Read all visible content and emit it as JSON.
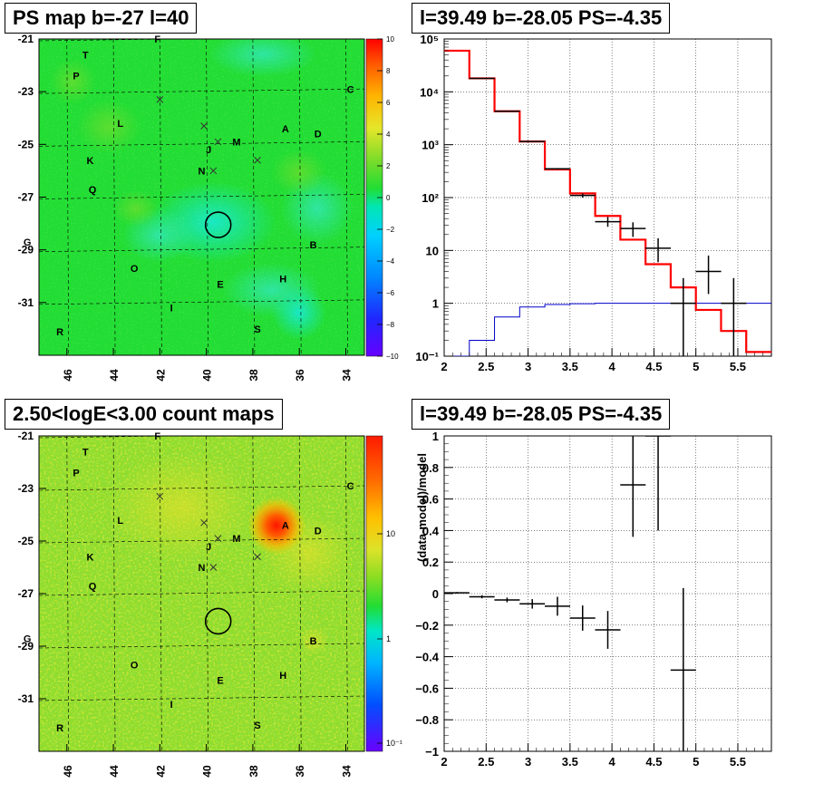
{
  "panels": {
    "map_top_title": "PS map b=-27 l=40",
    "spec_top_title": "l=39.49 b=-28.05 PS=-4.35",
    "map_bottom_title": "2.50<logE<3.00 count maps",
    "spec_bottom_title": "l=39.49 b=-28.05 PS=-4.35"
  },
  "sky_maps": {
    "lon_ticks": [
      "46",
      "44",
      "42",
      "40",
      "38",
      "36",
      "34"
    ],
    "lat_ticks": [
      "-21",
      "-23",
      "-25",
      "-27",
      "-29",
      "-31"
    ],
    "source_labels": [
      {
        "label": "F",
        "l": 42.1,
        "b": -21.0
      },
      {
        "label": "T",
        "l": 45.2,
        "b": -21.6
      },
      {
        "label": "P",
        "l": 45.6,
        "b": -22.4
      },
      {
        "label": "C",
        "l": 33.8,
        "b": -22.9
      },
      {
        "label": "L",
        "l": 43.7,
        "b": -24.2
      },
      {
        "label": "A",
        "l": 36.6,
        "b": -24.4
      },
      {
        "label": "D",
        "l": 35.2,
        "b": -24.6
      },
      {
        "label": "M",
        "l": 38.7,
        "b": -24.9
      },
      {
        "label": "J",
        "l": 39.9,
        "b": -25.2
      },
      {
        "label": "K",
        "l": 45.0,
        "b": -25.6
      },
      {
        "label": "N",
        "l": 40.2,
        "b": -26.0
      },
      {
        "label": "Q",
        "l": 44.9,
        "b": -26.7
      },
      {
        "label": "G",
        "l": 47.7,
        "b": -28.7
      },
      {
        "label": "B",
        "l": 35.4,
        "b": -28.8
      },
      {
        "label": "O",
        "l": 43.1,
        "b": -29.7
      },
      {
        "label": "H",
        "l": 36.7,
        "b": -30.1
      },
      {
        "label": "E",
        "l": 39.4,
        "b": -30.3
      },
      {
        "label": "I",
        "l": 41.5,
        "b": -31.2
      },
      {
        "label": "S",
        "l": 37.8,
        "b": -32.0
      },
      {
        "label": "R",
        "l": 46.3,
        "b": -32.1
      }
    ],
    "markers": [
      {
        "l": 42.0,
        "b": -23.3
      },
      {
        "l": 40.1,
        "b": -24.3
      },
      {
        "l": 39.5,
        "b": -24.9
      },
      {
        "l": 37.8,
        "b": -25.6
      },
      {
        "l": 39.7,
        "b": -26.0
      }
    ],
    "circle_center": {
      "l": 39.49,
      "b": -28.05
    },
    "ps_colorbar": {
      "range": [
        -10,
        10
      ],
      "ticks": [
        "10",
        "8",
        "6",
        "4",
        "2",
        "0",
        "−2",
        "−4",
        "−6",
        "−8",
        "−10"
      ]
    },
    "count_colorbar": {
      "scale": "log",
      "ticks": [
        "10",
        "1",
        "10⁻¹"
      ]
    },
    "colors": {
      "grid": "#000000",
      "circle": "#000000"
    }
  },
  "chart_data": [
    {
      "type": "line",
      "title": "l=39.49 b=-28.05 PS=-4.35",
      "xlabel": "",
      "ylabel": "",
      "xlim": [
        2,
        5.9
      ],
      "ylim": [
        0.1,
        100000
      ],
      "yscale": "log",
      "grid": true,
      "x_ticks": [
        "2",
        "2.5",
        "3",
        "3.5",
        "4",
        "4.5",
        "5",
        "5.5"
      ],
      "y_ticks": [
        "10⁻¹",
        "1",
        "10",
        "10²",
        "10³",
        "10⁴",
        "10⁵"
      ],
      "bin_edges": [
        2.0,
        2.3,
        2.6,
        2.9,
        3.2,
        3.5,
        3.8,
        4.1,
        4.4,
        4.7,
        5.0,
        5.3,
        5.6,
        5.9
      ],
      "series": [
        {
          "role": "model",
          "color": "#ff0000",
          "values": [
            60000,
            18000,
            4300,
            1150,
            340,
            120,
            45,
            16,
            5.5,
            2.0,
            0.75,
            0.3,
            0.12
          ]
        },
        {
          "role": "data",
          "color": "#000000",
          "x": [
            2.45,
            2.75,
            3.05,
            3.35,
            3.65,
            3.95,
            4.25,
            4.55,
            4.85,
            5.15,
            5.45
          ],
          "y": [
            18000,
            4300,
            1150,
            350,
            110,
            35,
            26,
            11,
            1.0,
            4.0,
            1.0
          ],
          "y_low": [
            17800,
            4250,
            1130,
            340,
            100,
            28,
            18,
            6,
            0.1,
            1.5,
            0.1
          ],
          "y_high": [
            18200,
            4350,
            1170,
            362,
            120,
            43,
            34,
            17,
            3.0,
            8.0,
            3.0
          ]
        },
        {
          "role": "background",
          "color": "#0000cc",
          "values": [
            0.1,
            0.2,
            0.55,
            0.85,
            0.95,
            0.98,
            1.0,
            1.0,
            1.0,
            1.0,
            1.0,
            1.0,
            1.0
          ]
        }
      ]
    },
    {
      "type": "scatter",
      "title": "l=39.49 b=-28.05 PS=-4.35",
      "xlabel": "",
      "ylabel": "(data-model)/model",
      "xlim": [
        2,
        5.9
      ],
      "ylim": [
        -1,
        1
      ],
      "grid": true,
      "x_ticks": [
        "2",
        "2.5",
        "3",
        "3.5",
        "4",
        "4.5",
        "5",
        "5.5"
      ],
      "y_ticks": [
        "−1",
        "−0.8",
        "−0.6",
        "−0.4",
        "−0.2",
        "0",
        "0.2",
        "0.4",
        "0.6",
        "0.8",
        "1"
      ],
      "series": [
        {
          "role": "residual",
          "color": "#000000",
          "x": [
            2.15,
            2.45,
            2.75,
            3.05,
            3.35,
            3.65,
            3.95,
            4.25,
            4.55,
            4.85
          ],
          "y": [
            0.005,
            -0.02,
            -0.04,
            -0.065,
            -0.08,
            -0.155,
            -0.23,
            0.69,
            1.0,
            -0.485
          ],
          "err": [
            0.005,
            0.01,
            0.015,
            0.03,
            0.06,
            0.08,
            0.12,
            0.33,
            0.6,
            0.52
          ]
        }
      ]
    }
  ]
}
